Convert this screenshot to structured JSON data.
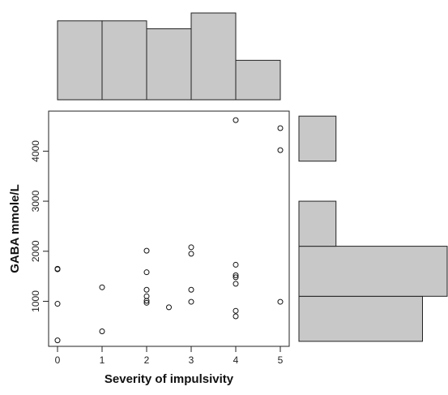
{
  "chart_data": {
    "type": "scatter",
    "xlabel": "Severity of impulsivity",
    "ylabel": "GABA mmole/L",
    "xlim": [
      -0.2,
      5.2
    ],
    "ylim": [
      100,
      4800
    ],
    "x_ticks": [
      0,
      1,
      2,
      3,
      4,
      5
    ],
    "y_ticks": [
      1000,
      2000,
      3000,
      4000
    ],
    "grid": false,
    "points": [
      {
        "x": 0,
        "y": 1650
      },
      {
        "x": 0,
        "y": 1640
      },
      {
        "x": 0,
        "y": 950
      },
      {
        "x": 0,
        "y": 220
      },
      {
        "x": 1,
        "y": 1280
      },
      {
        "x": 1,
        "y": 400
      },
      {
        "x": 2,
        "y": 2010
      },
      {
        "x": 2,
        "y": 1580
      },
      {
        "x": 2,
        "y": 1230
      },
      {
        "x": 2,
        "y": 1100
      },
      {
        "x": 2,
        "y": 1010
      },
      {
        "x": 2,
        "y": 970
      },
      {
        "x": 2.5,
        "y": 880
      },
      {
        "x": 3,
        "y": 2080
      },
      {
        "x": 3,
        "y": 1950
      },
      {
        "x": 3,
        "y": 1230
      },
      {
        "x": 3,
        "y": 990
      },
      {
        "x": 4,
        "y": 4620
      },
      {
        "x": 4,
        "y": 1730
      },
      {
        "x": 4,
        "y": 1520
      },
      {
        "x": 4,
        "y": 1480
      },
      {
        "x": 4,
        "y": 1350
      },
      {
        "x": 4,
        "y": 810
      },
      {
        "x": 4,
        "y": 700
      },
      {
        "x": 5,
        "y": 4460
      },
      {
        "x": 5,
        "y": 4020
      },
      {
        "x": 5,
        "y": 990
      }
    ],
    "top_histogram": {
      "bins": [
        [
          0,
          1
        ],
        [
          1,
          2
        ],
        [
          2,
          3
        ],
        [
          3,
          4
        ],
        [
          4,
          5
        ]
      ],
      "counts": [
        10,
        10,
        9,
        11,
        5
      ]
    },
    "right_histogram": {
      "bins": [
        [
          200,
          1100
        ],
        [
          1100,
          2100
        ],
        [
          2100,
          3000
        ],
        [
          3000,
          3800
        ],
        [
          3800,
          4700
        ]
      ],
      "counts": [
        10,
        12,
        3,
        0,
        3
      ]
    }
  }
}
